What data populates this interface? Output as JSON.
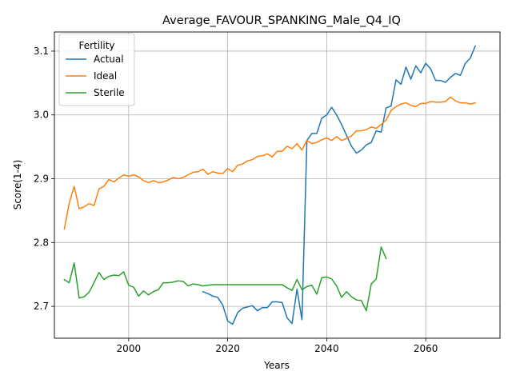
{
  "chart_data": {
    "type": "line",
    "title": "Average_FAVOUR_SPANKING_Male_Q4_IQ",
    "xlabel": "Years",
    "ylabel": "Score(1-4)",
    "xlim": [
      1985,
      2075
    ],
    "ylim": [
      2.65,
      3.13
    ],
    "xticks": [
      2000,
      2020,
      2040,
      2060
    ],
    "yticks": [
      2.7,
      2.8,
      2.9,
      3.0,
      3.1
    ],
    "xtick_labels": [
      "2000",
      "2020",
      "2040",
      "2060"
    ],
    "ytick_labels": [
      "2.7",
      "2.8",
      "2.9",
      "3.0",
      "3.1"
    ],
    "grid": true,
    "legend": {
      "title": "Fertility",
      "position": "top-left"
    },
    "series": [
      {
        "name": "Actual",
        "color": "#1f77b4",
        "x": [
          2015,
          2016,
          2017,
          2018,
          2019,
          2020,
          2021,
          2022,
          2023,
          2024,
          2025,
          2026,
          2027,
          2028,
          2029,
          2030,
          2031,
          2032,
          2033,
          2034,
          2035,
          2036,
          2037,
          2038,
          2039,
          2040,
          2041,
          2042,
          2043,
          2044,
          2045,
          2046,
          2047,
          2048,
          2049,
          2050,
          2051,
          2052,
          2053,
          2054,
          2055,
          2056,
          2057,
          2058,
          2059,
          2060,
          2061,
          2062,
          2063,
          2064,
          2065,
          2066,
          2067,
          2068,
          2069,
          2070
        ],
        "y": [
          2.723,
          2.72,
          2.716,
          2.714,
          2.702,
          2.677,
          2.672,
          2.69,
          2.697,
          2.699,
          2.701,
          2.693,
          2.698,
          2.698,
          2.707,
          2.707,
          2.706,
          2.682,
          2.673,
          2.727,
          2.679,
          2.96,
          2.971,
          2.971,
          2.995,
          3.0,
          3.012,
          3.0,
          2.985,
          2.968,
          2.951,
          2.94,
          2.945,
          2.953,
          2.957,
          2.975,
          2.973,
          3.011,
          3.014,
          3.055,
          3.048,
          3.075,
          3.056,
          3.077,
          3.066,
          3.081,
          3.072,
          3.054,
          3.054,
          3.051,
          3.059,
          3.065,
          3.062,
          3.081,
          3.089,
          3.108
        ]
      },
      {
        "name": "Ideal",
        "color": "#ff7f0e",
        "x": [
          1987,
          1988,
          1989,
          1990,
          1991,
          1992,
          1993,
          1994,
          1995,
          1996,
          1997,
          1998,
          1999,
          2000,
          2001,
          2002,
          2003,
          2004,
          2005,
          2006,
          2007,
          2008,
          2009,
          2010,
          2011,
          2012,
          2013,
          2014,
          2015,
          2016,
          2017,
          2018,
          2019,
          2020,
          2021,
          2022,
          2023,
          2024,
          2025,
          2026,
          2027,
          2028,
          2029,
          2030,
          2031,
          2032,
          2033,
          2034,
          2035,
          2036,
          2037,
          2038,
          2039,
          2040,
          2041,
          2042,
          2043,
          2044,
          2045,
          2046,
          2047,
          2048,
          2049,
          2050,
          2051,
          2052,
          2053,
          2054,
          2055,
          2056,
          2057,
          2058,
          2059,
          2060,
          2061,
          2062,
          2063,
          2064,
          2065,
          2066,
          2067,
          2068,
          2069,
          2070
        ],
        "y": [
          2.821,
          2.862,
          2.888,
          2.853,
          2.856,
          2.861,
          2.858,
          2.884,
          2.888,
          2.899,
          2.895,
          2.901,
          2.906,
          2.904,
          2.906,
          2.903,
          2.897,
          2.894,
          2.897,
          2.894,
          2.895,
          2.898,
          2.902,
          2.9,
          2.902,
          2.906,
          2.91,
          2.911,
          2.915,
          2.907,
          2.911,
          2.909,
          2.908,
          2.916,
          2.911,
          2.921,
          2.923,
          2.928,
          2.93,
          2.935,
          2.936,
          2.939,
          2.934,
          2.943,
          2.943,
          2.951,
          2.947,
          2.955,
          2.945,
          2.96,
          2.955,
          2.957,
          2.961,
          2.964,
          2.96,
          2.966,
          2.96,
          2.963,
          2.967,
          2.975,
          2.975,
          2.977,
          2.981,
          2.979,
          2.985,
          2.992,
          3.007,
          3.013,
          3.017,
          3.019,
          3.015,
          3.013,
          3.018,
          3.018,
          3.021,
          3.02,
          3.02,
          3.021,
          3.028,
          3.022,
          3.019,
          3.019,
          3.017,
          3.019
        ]
      },
      {
        "name": "Sterile",
        "color": "#2ca02c",
        "x": [
          1987,
          1988,
          1989,
          1990,
          1991,
          1992,
          1993,
          1994,
          1995,
          1996,
          1997,
          1998,
          1999,
          2000,
          2001,
          2002,
          2003,
          2004,
          2005,
          2006,
          2007,
          2008,
          2009,
          2010,
          2011,
          2012,
          2013,
          2014,
          2015,
          2016,
          2017,
          2018,
          2019,
          2020,
          2021,
          2022,
          2023,
          2024,
          2025,
          2026,
          2027,
          2028,
          2029,
          2030,
          2031,
          2032,
          2033,
          2034,
          2035,
          2036,
          2037,
          2038,
          2039,
          2040,
          2041,
          2042,
          2043,
          2044,
          2045,
          2046,
          2047,
          2048,
          2049,
          2050,
          2051,
          2052
        ],
        "y": [
          2.742,
          2.737,
          2.768,
          2.713,
          2.715,
          2.722,
          2.737,
          2.753,
          2.742,
          2.747,
          2.749,
          2.748,
          2.754,
          2.733,
          2.73,
          2.716,
          2.724,
          2.718,
          2.723,
          2.726,
          2.737,
          2.737,
          2.738,
          2.74,
          2.739,
          2.732,
          2.735,
          2.734,
          2.732,
          2.733,
          2.734,
          2.734,
          2.734,
          2.734,
          2.734,
          2.734,
          2.734,
          2.734,
          2.734,
          2.734,
          2.734,
          2.734,
          2.734,
          2.734,
          2.734,
          2.729,
          2.725,
          2.742,
          2.726,
          2.731,
          2.733,
          2.719,
          2.745,
          2.746,
          2.743,
          2.732,
          2.714,
          2.723,
          2.715,
          2.71,
          2.709,
          2.693,
          2.735,
          2.743,
          2.793,
          2.775
        ]
      }
    ]
  }
}
